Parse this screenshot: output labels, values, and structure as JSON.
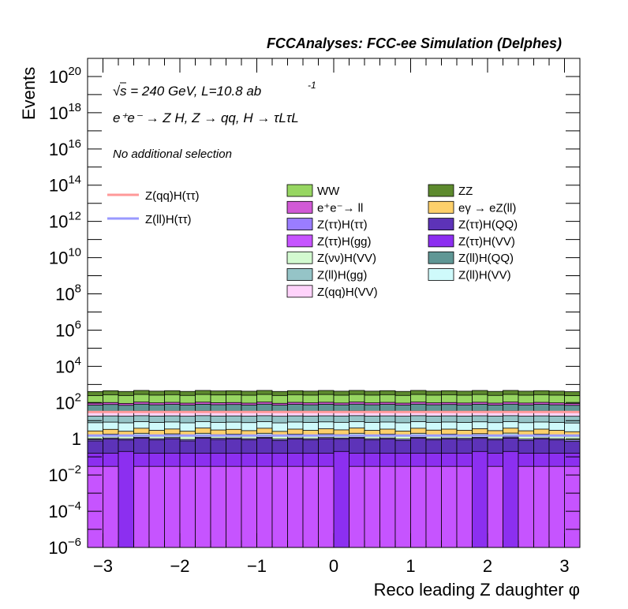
{
  "chart_data": {
    "type": "stacked-histogram",
    "header": "FCCAnalyses: FCC-ee Simulation (Delphes)",
    "energy_label": "s = 240 GeV, L=10.8 ab",
    "energy_sup": "-1",
    "process_label": "e⁺e⁻ → Z H, Z → qq, H → τLτL",
    "selection_label": "No additional selection",
    "xlabel": "Reco leading Z daughter φ",
    "ylabel": "Events",
    "log_y": true,
    "xlim": [
      -3.2,
      3.2
    ],
    "ylim": [
      1e-06,
      1e+21
    ],
    "x_ticks": [
      -3,
      -2,
      -1,
      0,
      1,
      2,
      3
    ],
    "x_tick_labels": [
      "−3",
      "−2",
      "−1",
      "0",
      "1",
      "2",
      "3"
    ],
    "y_ticks": [
      {
        "base": "10",
        "exp": "−6",
        "value": 1e-06
      },
      {
        "base": "10",
        "exp": "−4",
        "value": 0.0001
      },
      {
        "base": "10",
        "exp": "−2",
        "value": 0.01
      },
      {
        "base": "1",
        "exp": "",
        "value": 1
      },
      {
        "base": "10",
        "exp": "2",
        "value": 100.0
      },
      {
        "base": "10",
        "exp": "4",
        "value": 10000.0
      },
      {
        "base": "10",
        "exp": "6",
        "value": 1000000.0
      },
      {
        "base": "10",
        "exp": "8",
        "value": 100000000.0
      },
      {
        "base": "10",
        "exp": "10",
        "value": 10000000000.0
      },
      {
        "base": "10",
        "exp": "12",
        "value": 1000000000000.0
      },
      {
        "base": "10",
        "exp": "14",
        "value": 100000000000000.0
      },
      {
        "base": "10",
        "exp": "16",
        "value": 1e+16
      },
      {
        "base": "10",
        "exp": "18",
        "value": 1e+18
      },
      {
        "base": "10",
        "exp": "20",
        "value": 1e+20
      }
    ],
    "nbins": 32,
    "stack_bottom_to_top": [
      {
        "name": "Z(ττ)H(gg)",
        "color": "#c654ff",
        "values": [
          0.03,
          0.03,
          1e-07,
          0.03,
          0.03,
          0.03,
          0.03,
          0.03,
          0.03,
          0.03,
          0.03,
          0.03,
          0.03,
          0.03,
          0.03,
          0.03,
          1e-07,
          0.03,
          0.03,
          0.03,
          0.03,
          0.03,
          0.03,
          0.03,
          0.03,
          1e-07,
          0.03,
          1e-07,
          0.03,
          0.03,
          0.03,
          0.03
        ]
      },
      {
        "name": "Z(ττ)H(VV)",
        "color": "#8c2ff0",
        "values": [
          0.13,
          0.13,
          0.2,
          0.13,
          0.13,
          0.13,
          0.13,
          0.13,
          0.13,
          0.13,
          0.13,
          0.13,
          0.13,
          0.13,
          0.13,
          0.13,
          0.2,
          0.13,
          0.13,
          0.13,
          0.13,
          0.13,
          0.13,
          0.13,
          0.13,
          0.2,
          0.13,
          0.2,
          0.13,
          0.13,
          0.13,
          0.13
        ]
      },
      {
        "name": "Z(ττ)H(QQ)",
        "color": "#5d33b8",
        "values": [
          0.6,
          0.8,
          0.65,
          0.9,
          0.7,
          0.85,
          0.6,
          0.9,
          0.75,
          0.8,
          0.7,
          0.9,
          0.65,
          0.8,
          0.7,
          0.85,
          0.75,
          0.9,
          0.7,
          0.8,
          0.65,
          0.9,
          0.7,
          0.8,
          0.75,
          0.85,
          0.7,
          0.9,
          0.65,
          0.8,
          0.7,
          0.55
        ]
      },
      {
        "name": "Z(ττ)H(ττ)",
        "color": "#9a7dff",
        "values": [
          0.15,
          0.15,
          0.15,
          0.15,
          0.15,
          0.15,
          0.15,
          0.15,
          0.15,
          0.15,
          0.15,
          0.15,
          0.15,
          0.15,
          0.15,
          0.15,
          0.15,
          0.15,
          0.15,
          0.15,
          0.15,
          0.15,
          0.15,
          0.15,
          0.15,
          0.15,
          0.15,
          0.15,
          0.15,
          0.15,
          0.15,
          0.15
        ]
      },
      {
        "name": "Z(νν)H(VV)",
        "color": "#d3fad0",
        "values": [
          0.6,
          0.7,
          0.5,
          0.8,
          0.6,
          0.7,
          0.5,
          0.8,
          0.6,
          0.7,
          0.6,
          0.8,
          0.5,
          0.7,
          0.6,
          0.7,
          0.6,
          0.8,
          0.6,
          0.7,
          0.5,
          0.8,
          0.6,
          0.7,
          0.6,
          0.7,
          0.6,
          0.8,
          0.5,
          0.7,
          0.6,
          0.5
        ]
      },
      {
        "name": "eγ → eZ(ll)",
        "color": "#fdd06b",
        "values": [
          1.2,
          1.5,
          1.1,
          1.8,
          1.3,
          1.6,
          1.2,
          1.9,
          1.4,
          1.5,
          1.2,
          1.8,
          1.1,
          1.6,
          1.3,
          1.7,
          1.4,
          1.9,
          1.3,
          1.6,
          1.2,
          1.8,
          1.4,
          1.6,
          1.3,
          1.7,
          1.2,
          1.8,
          1.3,
          1.6,
          1.3,
          1.1
        ]
      },
      {
        "name": "Z(ll)H(VV)",
        "color": "#cffafb",
        "values": [
          5,
          5,
          5,
          5,
          5,
          5,
          5,
          5,
          5,
          5,
          5,
          5,
          5,
          5,
          5,
          5,
          5,
          5,
          5,
          5,
          5,
          5,
          5,
          5,
          5,
          5,
          5,
          5,
          5,
          5,
          5,
          5
        ]
      },
      {
        "name": "Z(ll)H(gg)",
        "color": "#95c4c7",
        "values": [
          10,
          10,
          10,
          10,
          10,
          10,
          10,
          10,
          10,
          10,
          10,
          10,
          10,
          10,
          10,
          10,
          10,
          10,
          10,
          10,
          10,
          10,
          10,
          10,
          10,
          10,
          10,
          10,
          10,
          10,
          10,
          10
        ]
      },
      {
        "name": "Z(qq)H(VV)",
        "color": "#ffd3fb",
        "values": [
          15,
          15,
          15,
          15,
          15,
          15,
          15,
          15,
          15,
          15,
          15,
          15,
          15,
          15,
          15,
          15,
          15,
          15,
          15,
          15,
          15,
          15,
          15,
          15,
          15,
          15,
          15,
          15,
          15,
          15,
          15,
          15
        ]
      },
      {
        "name": "Z(ll)H(QQ)",
        "color": "#5f9795",
        "values": [
          40,
          45,
          38,
          48,
          42,
          46,
          40,
          47,
          43,
          45,
          40,
          48,
          39,
          46,
          42,
          47,
          41,
          48,
          42,
          46,
          40,
          48,
          42,
          45,
          41,
          47,
          40,
          48,
          41,
          46,
          42,
          38
        ]
      },
      {
        "name": "e⁺e⁻→ ll",
        "color": "#d159d6",
        "values": [
          20,
          22,
          19,
          24,
          21,
          23,
          20,
          24,
          21,
          22,
          20,
          24,
          19,
          23,
          21,
          23,
          20,
          24,
          21,
          23,
          20,
          24,
          21,
          22,
          20,
          23,
          20,
          24,
          20,
          23,
          21,
          18
        ]
      },
      {
        "name": "WW",
        "color": "#97d662",
        "values": [
          150,
          170,
          155,
          175,
          160,
          170,
          155,
          175,
          165,
          170,
          160,
          175,
          155,
          170,
          160,
          175,
          160,
          175,
          160,
          170,
          155,
          175,
          160,
          170,
          160,
          175,
          155,
          175,
          160,
          170,
          160,
          150
        ]
      },
      {
        "name": "ZZ",
        "color": "#5d8a2e",
        "values": [
          160,
          180,
          165,
          185,
          170,
          180,
          165,
          185,
          175,
          180,
          170,
          185,
          165,
          180,
          170,
          185,
          170,
          185,
          170,
          180,
          165,
          185,
          170,
          180,
          170,
          185,
          165,
          185,
          170,
          180,
          170,
          160
        ]
      }
    ],
    "signals": [
      {
        "name": "Z(qq)H(ττ)",
        "color": "#ff9999",
        "value": 30
      },
      {
        "name": "Z(ll)H(ττ)",
        "color": "#9999ff",
        "value": 1.5
      }
    ],
    "legend_columns": [
      [
        "WW",
        "e⁺e⁻→ ll",
        "Z(ττ)H(ττ)",
        "Z(ττ)H(gg)",
        "Z(νν)H(VV)",
        "Z(ll)H(gg)",
        "Z(qq)H(VV)"
      ],
      [
        "ZZ",
        "eγ → eZ(ll)",
        "Z(ττ)H(QQ)",
        "Z(ττ)H(VV)",
        "Z(ll)H(QQ)",
        "Z(ll)H(VV)"
      ]
    ]
  }
}
